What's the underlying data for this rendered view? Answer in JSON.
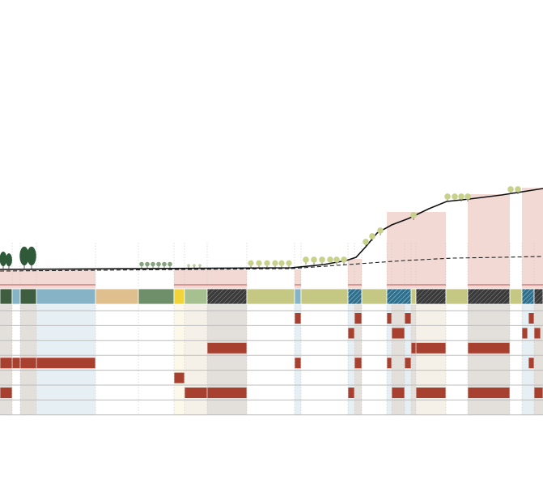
{
  "diagram": {
    "kind": "landscape-section-matrix",
    "colors": {
      "terrain_line": "#111111",
      "water_line": "#222222",
      "pink_band": "#f2d9d3",
      "pink_band_edge": "#c9706b",
      "dark_green": "#3f5e3f",
      "sage_green": "#6f8f6a",
      "light_sage": "#a7c08f",
      "olive": "#c4c882",
      "blue": "#87b3c6",
      "tan": "#dfbf8e",
      "yellow": "#f0d43a",
      "hatch_dark": "#2b2b2b",
      "hatch_blue": "#3d7d99",
      "cell_red": "#a8402f",
      "row_line": "#bdbdbd",
      "col_grey": "#d9d4cf",
      "col_blue": "#dde9ef",
      "col_beige": "#f1ece0",
      "tree_dark": "#2f5a3a",
      "tree_sage": "#86a27e",
      "shrub_olive": "#c8d18c"
    },
    "strip_segments": [
      {
        "type": "dark_green"
      },
      {
        "type": "blue"
      },
      {
        "type": "dark_green"
      },
      {
        "type": "blue"
      },
      {
        "type": "tan"
      },
      {
        "type": "sage_green"
      },
      {
        "type": "yellow"
      },
      {
        "type": "light_sage"
      },
      {
        "type": "hatch_dark"
      },
      {
        "type": "olive"
      },
      {
        "type": "blue"
      },
      {
        "type": "olive"
      },
      {
        "type": "hatch_blue"
      },
      {
        "type": "olive"
      },
      {
        "type": "hatch_blue"
      },
      {
        "type": "olive"
      },
      {
        "type": "hatch_dark"
      },
      {
        "type": "olive"
      },
      {
        "type": "hatch_dark"
      },
      {
        "type": "olive"
      },
      {
        "type": "hatch_blue"
      },
      {
        "type": "hatch_dark"
      }
    ],
    "matrix_rows": 7,
    "vegetation": [
      {
        "type": "conifer"
      },
      {
        "type": "conifer"
      },
      {
        "type": "small_trees"
      },
      {
        "type": "shrubs"
      },
      {
        "type": "shrubs"
      },
      {
        "type": "shrubs"
      },
      {
        "type": "shrubs"
      },
      {
        "type": "shrubs"
      }
    ]
  }
}
